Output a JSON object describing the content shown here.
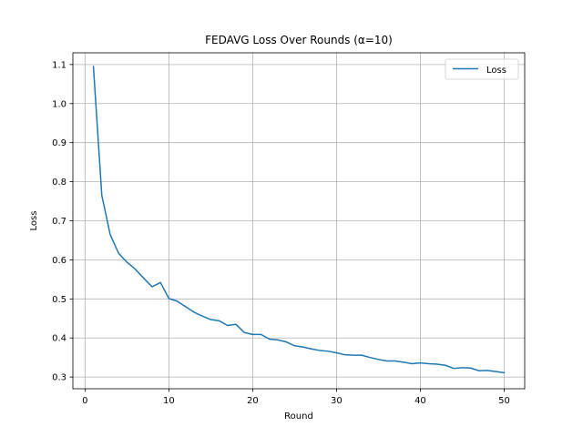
{
  "chart_data": {
    "type": "line",
    "title": "FEDAVG Loss Over Rounds (α=10)",
    "xlabel": "Round",
    "ylabel": "Loss",
    "xlim": [
      -1.45,
      52.45
    ],
    "ylim": [
      0.27,
      1.13
    ],
    "xticks": [
      0,
      10,
      20,
      30,
      40,
      50
    ],
    "xtick_labels": [
      "0",
      "10",
      "20",
      "30",
      "40",
      "50"
    ],
    "yticks": [
      0.3,
      0.4,
      0.5,
      0.6,
      0.7,
      0.8,
      0.9,
      1.0,
      1.1
    ],
    "ytick_labels": [
      "0.3",
      "0.4",
      "0.5",
      "0.6",
      "0.7",
      "0.8",
      "0.9",
      "1.0",
      "1.1"
    ],
    "grid": true,
    "legend_position": "top-right",
    "series": [
      {
        "name": "Loss",
        "color": "#1f77b4",
        "x": [
          1,
          2,
          3,
          4,
          5,
          6,
          7,
          8,
          9,
          10,
          11,
          12,
          13,
          14,
          15,
          16,
          17,
          18,
          19,
          20,
          21,
          22,
          23,
          24,
          25,
          26,
          27,
          28,
          29,
          30,
          31,
          32,
          33,
          34,
          35,
          36,
          37,
          38,
          39,
          40,
          41,
          42,
          43,
          44,
          45,
          46,
          47,
          48,
          49,
          50
        ],
        "y": [
          1.095,
          0.765,
          0.665,
          0.617,
          0.594,
          0.576,
          0.553,
          0.531,
          0.542,
          0.501,
          0.494,
          0.48,
          0.466,
          0.456,
          0.447,
          0.444,
          0.432,
          0.435,
          0.414,
          0.409,
          0.409,
          0.397,
          0.395,
          0.39,
          0.38,
          0.377,
          0.372,
          0.368,
          0.366,
          0.362,
          0.357,
          0.356,
          0.356,
          0.35,
          0.345,
          0.341,
          0.341,
          0.338,
          0.334,
          0.336,
          0.334,
          0.333,
          0.33,
          0.322,
          0.324,
          0.323,
          0.316,
          0.317,
          0.314,
          0.311
        ]
      }
    ]
  }
}
